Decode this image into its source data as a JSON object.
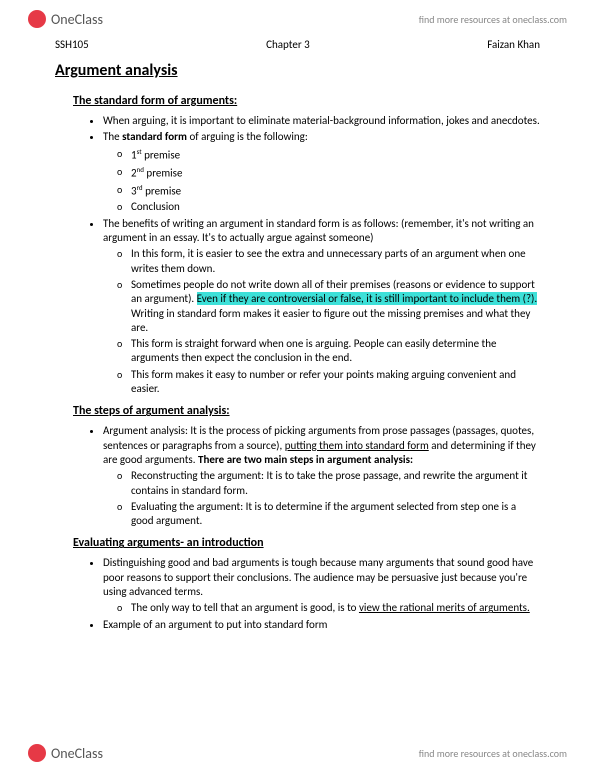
{
  "header": {
    "logo_text": "OneClass",
    "top_link": "find more resources at oneclass.com"
  },
  "meta": {
    "left": "SSH105",
    "center": "Chapter 3",
    "right": "Faizan Khan"
  },
  "title": "Argument analysis",
  "sections": {
    "s1": {
      "title": "The standard form of arguments:",
      "b1": "When arguing, it is important to eliminate material-background information, jokes and anecdotes.",
      "b2a": "The ",
      "b2b": "standard form",
      "b2c": " of arguing is the following:",
      "p1a": "1",
      "p1sup": "st",
      "p1b": " premise",
      "p2a": "2",
      "p2sup": "nd",
      "p2b": " premise",
      "p3a": "3",
      "p3sup": "rd",
      "p3b": " premise",
      "p4": "Conclusion",
      "b3": "The benefits of writing an argument in standard form is as follows: (remember, it's not writing an argument in an essay. It's to actually argue against someone)",
      "b3s1": "In this form, it is easier to see the extra and unnecessary parts of an argument when one writes them down.",
      "b3s2a": "Sometimes people do not write down all of their premises (reasons or evidence to support an argument). ",
      "b3s2hl": "Even if they are controversial or false, it is still important to include them (?).",
      "b3s2b": " Writing in standard form makes it easier to figure out the missing premises and what they are.",
      "b3s3": "This form is straight forward when one is arguing. People can easily determine the arguments then expect the conclusion in the end.",
      "b3s4": "This form makes it easy to number or refer your points making arguing convenient and easier."
    },
    "s2": {
      "title": "The steps of argument analysis:",
      "b1a": "Argument analysis: It is the process of picking arguments from prose passages (passages, quotes, sentences or paragraphs from a source), ",
      "b1u": "putting them into standard form",
      "b1b": " and determining if they are good arguments. ",
      "b1bold": "There are two main steps in argument analysis:",
      "b1s1": "Reconstructing the argument: It is to take the prose passage, and rewrite the argument it contains in standard form.",
      "b1s2": "Evaluating the argument: It is to determine if the argument selected from step one is a good argument."
    },
    "s3": {
      "title": "Evaluating arguments- an introduction",
      "b1": "Distinguishing good and bad arguments is tough because many arguments that sound good have poor reasons to support their conclusions. The audience may be persuasive just because you're using advanced terms.",
      "b1s1a": "The only way to tell that an argument is good, is to ",
      "b1s1u": "view the rational merits of arguments.",
      "b2": "Example of an argument to put into standard form"
    }
  },
  "footer": {
    "logo_text": "OneClass",
    "link": "find more resources at oneclass.com"
  }
}
